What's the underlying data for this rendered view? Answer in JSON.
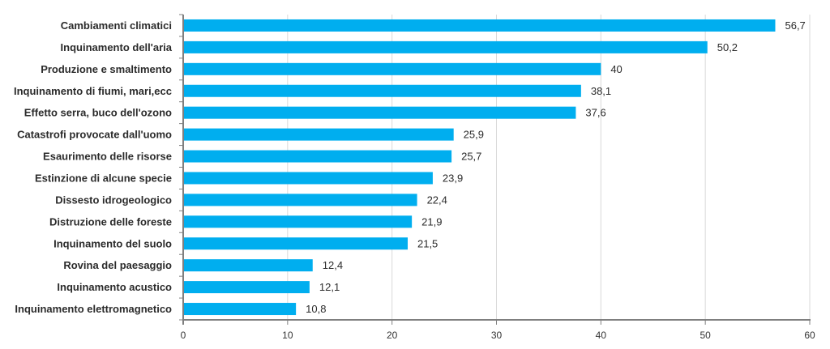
{
  "chart_data": {
    "type": "bar",
    "orientation": "horizontal",
    "title": "",
    "xlabel": "",
    "ylabel": "",
    "xlim": [
      0,
      60
    ],
    "x_ticks": [
      0,
      10,
      20,
      30,
      40,
      50,
      60
    ],
    "grid": true,
    "bar_color": "#00AEEF",
    "categories": [
      "Cambiamenti climatici",
      "Inquinamento dell'aria",
      "Produzione e smaltimento",
      "Inquinamento di fiumi, mari,ecc",
      "Effetto serra, buco dell'ozono",
      "Catastrofi provocate dall'uomo",
      "Esaurimento delle risorse",
      "Estinzione di alcune specie",
      "Dissesto idrogeologico",
      "Distruzione delle foreste",
      "Inquinamento del suolo",
      "Rovina del paesaggio",
      "Inquinamento acustico",
      "Inquinamento elettromagnetico"
    ],
    "values": [
      56.7,
      50.2,
      40,
      38.1,
      37.6,
      25.9,
      25.7,
      23.9,
      22.4,
      21.9,
      21.5,
      12.4,
      12.1,
      10.8
    ],
    "value_labels": [
      "56,7",
      "50,2",
      "40",
      "38,1",
      "37,6",
      "25,9",
      "25,7",
      "23,9",
      "22,4",
      "21,9",
      "21,5",
      "12,4",
      "12,1",
      "10,8"
    ]
  }
}
